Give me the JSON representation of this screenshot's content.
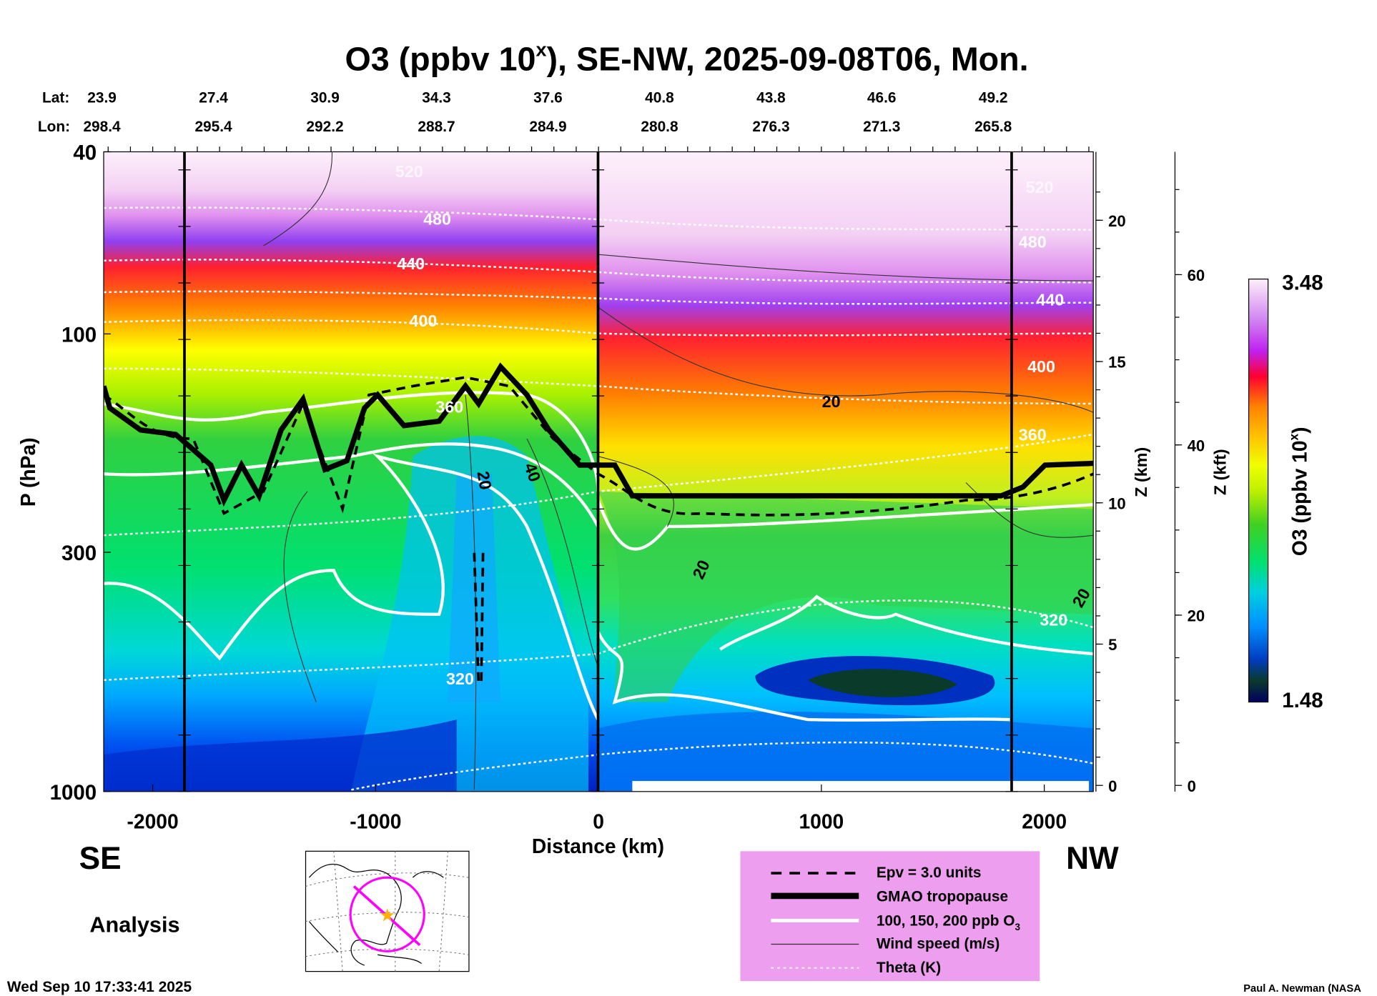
{
  "chart_data": {
    "type": "heatmap",
    "title_prefix": "O3 (ppbv 10",
    "title_superscript": "x",
    "title_suffix": "), SE-NW, 2025-09-08T06, Mon.",
    "xlabel": "Distance (km)",
    "ylabel": "P (hPa)",
    "xlim": [
      -2220,
      2220
    ],
    "ylim": [
      1000,
      40
    ],
    "yscale": "log",
    "x_ticks": [
      -2000,
      -1000,
      0,
      1000,
      2000
    ],
    "x_tick_labels": [
      "-2000",
      "-1000",
      "0",
      "1000",
      "2000"
    ],
    "y_ticks": [
      40,
      100,
      300,
      1000
    ],
    "y_tick_labels": [
      "40",
      "100",
      "300",
      "1000"
    ],
    "z_km_axis": {
      "label": "Z (km)",
      "ticks": [
        0,
        5,
        10,
        15,
        20
      ],
      "tick_labels": [
        "0",
        "5",
        "10",
        "15",
        "20"
      ]
    },
    "z_kft_axis": {
      "label": "Z (kft)",
      "ticks": [
        0,
        20,
        40,
        60
      ],
      "tick_labels": [
        "0",
        "20",
        "40",
        "60"
      ]
    },
    "lat_label": "Lat:",
    "lon_label": "Lon:",
    "lat": [
      "23.9",
      "27.4",
      "30.9",
      "34.3",
      "37.6",
      "40.8",
      "43.8",
      "46.6",
      "49.2"
    ],
    "lon": [
      "298.4",
      "295.4",
      "292.2",
      "288.7",
      "284.9",
      "280.8",
      "276.3",
      "271.3",
      "265.8"
    ],
    "colorbar": {
      "label_prefix": "O3 (ppbv 10",
      "label_superscript": "x",
      "label_suffix": ")",
      "min": "1.48",
      "max": "3.48",
      "colors": [
        "#000060",
        "#0a3a2a",
        "#003cc0",
        "#0050f0",
        "#0090ff",
        "#00c8f0",
        "#00e0b0",
        "#00e060",
        "#40d020",
        "#a0f000",
        "#f0ff00",
        "#ffc000",
        "#ff8000",
        "#ff3000",
        "#ff0040",
        "#c020f0",
        "#9040f0",
        "#d080f0",
        "#f0c0f0",
        "#fdf0fb"
      ]
    },
    "theta_labels": [
      "520",
      "480",
      "440",
      "400",
      "360",
      "320",
      "520",
      "480",
      "440",
      "400",
      "360",
      "320"
    ],
    "wind_labels": [
      "20",
      "40",
      "20",
      "20",
      "20"
    ],
    "legend_position": "bottom-center",
    "legend": [
      {
        "label": "Epv = 3.0 units",
        "style": "dashed-black"
      },
      {
        "label": "GMAO tropopause",
        "style": "thick-black"
      },
      {
        "label": "100, 150, 200 ppb O",
        "subscript": "3",
        "style": "white"
      },
      {
        "label": "Wind speed (m/s)",
        "style": "thin-black"
      },
      {
        "label": "Theta (K)",
        "style": "dotted-white"
      }
    ],
    "colors": {
      "legend_bg": "#ee9eee",
      "track": "#ff00ff",
      "center_marker": "#ffb000"
    }
  },
  "labels": {
    "left_direction": "SE",
    "right_direction": "NW",
    "analysis": "Analysis",
    "timestamp": "Wed Sep 10 17:33:41 2025",
    "credit": "Paul A. Newman (NASA"
  }
}
